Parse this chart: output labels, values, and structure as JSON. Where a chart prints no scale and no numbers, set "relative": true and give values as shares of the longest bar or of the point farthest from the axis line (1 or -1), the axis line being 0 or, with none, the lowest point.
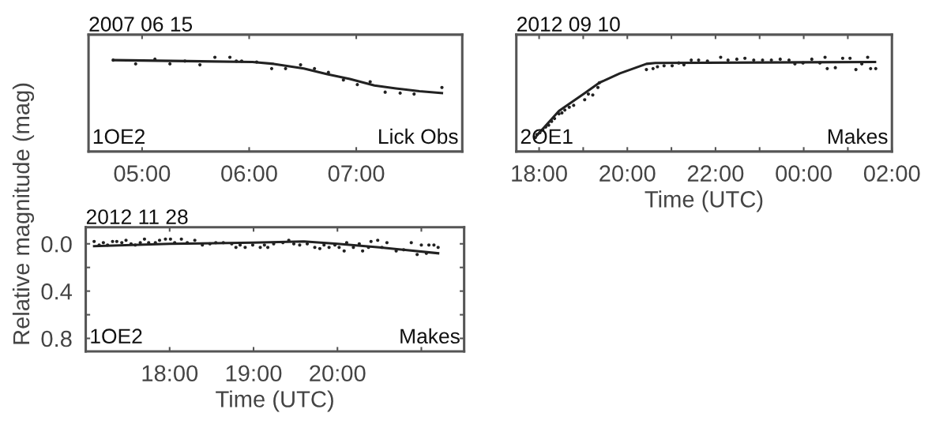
{
  "chart_data": [
    {
      "type": "scatter",
      "title": "2007 06 15",
      "relative": true,
      "tick_labels": "x",
      "xlim": [
        4.5,
        7.99
      ],
      "xticks": [
        {
          "value": 5,
          "label": "05:00"
        },
        {
          "value": 6,
          "label": "06:00"
        },
        {
          "value": 7,
          "label": "07:00"
        }
      ],
      "annotations": [
        "1OE2",
        "Lick Obs"
      ],
      "series": [
        {
          "marker": "circle",
          "color": "#222222",
          "x": [
            4.73,
            4.94,
            5.12,
            5.26,
            5.4,
            5.54,
            5.68,
            5.82,
            5.88,
            5.93,
            6.07,
            6.21,
            6.34,
            6.48,
            6.61,
            6.74,
            6.88,
            7.01,
            7.13,
            7.27,
            7.41,
            7.54,
            7.8
          ],
          "values": [
            0.97,
            0.93,
            0.98,
            0.93,
            0.96,
            0.92,
            1.0,
            1.0,
            0.96,
            0.96,
            0.95,
            0.88,
            0.88,
            0.92,
            0.88,
            0.84,
            0.76,
            0.71,
            0.74,
            0.63,
            0.62,
            0.61,
            0.68
          ]
        },
        {
          "type": "line",
          "marker": "none",
          "color": "#222222",
          "x": [
            4.73,
            6.03,
            6.23,
            6.51,
            6.73,
            6.94,
            7.17,
            7.37,
            7.59,
            7.8
          ],
          "values": [
            0.97,
            0.95,
            0.93,
            0.88,
            0.82,
            0.77,
            0.7,
            0.67,
            0.64,
            0.62
          ]
        }
      ]
    },
    {
      "type": "scatter",
      "title": "2012 09 10",
      "xlabel": "Time (UTC)",
      "relative": true,
      "tick_labels": "x",
      "xlim": [
        "2012-09-10T17:29",
        "2012-09-11T02:00"
      ],
      "xticks": [
        {
          "value": "2012-09-10T18:00",
          "label": "18:00"
        },
        {
          "value": "2012-09-10T19:00",
          "label": null
        },
        {
          "value": "2012-09-10T20:00",
          "label": "20:00"
        },
        {
          "value": "2012-09-10T21:00",
          "label": null
        },
        {
          "value": "2012-09-10T22:00",
          "label": "22:00"
        },
        {
          "value": "2012-09-10T23:00",
          "label": null
        },
        {
          "value": "2012-09-11T00:00",
          "label": "00:00"
        },
        {
          "value": "2012-09-11T01:00",
          "label": null
        },
        {
          "value": "2012-09-11T02:00",
          "label": "02:00"
        }
      ],
      "annotations": [
        "2OE1",
        "Makes"
      ],
      "series": [
        {
          "marker": "circle",
          "color": "#222222",
          "x": [
            "2012-09-10T17:55",
            "2012-09-10T17:57",
            "2012-09-10T18:01",
            "2012-09-10T18:05",
            "2012-09-10T18:09",
            "2012-09-10T18:13",
            "2012-09-10T18:17",
            "2012-09-10T18:21",
            "2012-09-10T18:27",
            "2012-09-10T18:31",
            "2012-09-10T18:35",
            "2012-09-10T18:41",
            "2012-09-10T18:47",
            "2012-09-10T19:02",
            "2012-09-10T19:07",
            "2012-09-10T19:13",
            "2012-09-10T19:20",
            "2012-09-10T19:22",
            "2012-09-10T20:26",
            "2012-09-10T20:35",
            "2012-09-10T20:41",
            "2012-09-10T20:50",
            "2012-09-10T21:01",
            "2012-09-10T21:10",
            "2012-09-10T21:17",
            "2012-09-10T21:27",
            "2012-09-10T21:37",
            "2012-09-10T21:49",
            "2012-09-10T22:07",
            "2012-09-10T22:17",
            "2012-09-10T22:29",
            "2012-09-10T22:40",
            "2012-09-10T22:52",
            "2012-09-10T23:04",
            "2012-09-10T23:16",
            "2012-09-10T23:28",
            "2012-09-10T23:40",
            "2012-09-10T23:48",
            "2012-09-10T23:59",
            "2012-09-11T00:11",
            "2012-09-11T00:22",
            "2012-09-11T00:29",
            "2012-09-11T00:32",
            "2012-09-11T00:43",
            "2012-09-11T00:53",
            "2012-09-11T01:03",
            "2012-09-11T01:11",
            "2012-09-11T01:19",
            "2012-09-11T01:27",
            "2012-09-11T01:31",
            "2012-09-11T01:38"
          ],
          "values": [
            0.15,
            0.18,
            0.2,
            0.23,
            0.26,
            0.28,
            0.32,
            0.35,
            0.4,
            0.41,
            0.44,
            0.47,
            0.49,
            0.55,
            0.61,
            0.6,
            0.68,
            0.73,
            0.87,
            0.88,
            0.9,
            0.91,
            0.91,
            0.94,
            0.92,
            0.97,
            0.97,
            0.96,
            1.0,
            0.97,
            0.98,
            0.99,
            0.97,
            0.97,
            0.97,
            0.98,
            0.97,
            0.93,
            0.94,
            0.98,
            0.94,
            1.0,
            0.88,
            0.89,
            0.99,
            0.99,
            0.87,
            0.93,
            1.0,
            0.88,
            0.88
          ]
        },
        {
          "type": "line",
          "marker": "none",
          "color": "#222222",
          "x": [
            "2012-09-10T17:57",
            "2012-09-10T18:27",
            "2012-09-10T19:02",
            "2012-09-10T19:22",
            "2012-09-10T19:50",
            "2012-09-10T20:26",
            "2012-09-10T20:38",
            "2012-09-11T01:37"
          ],
          "values": [
            0.17,
            0.43,
            0.62,
            0.73,
            0.83,
            0.93,
            0.94,
            0.95
          ]
        }
      ]
    },
    {
      "type": "scatter",
      "title": "2012 11 28",
      "xlabel": "Time (UTC)",
      "ylabel": "Relative magnitude (mag)",
      "xlim": [
        17.0,
        21.51
      ],
      "ylim": [
        0.91,
        -0.14
      ],
      "xticks": [
        {
          "value": 18,
          "label": "18:00"
        },
        {
          "value": 19,
          "label": "19:00"
        },
        {
          "value": 20,
          "label": "20:00"
        },
        {
          "value": 21,
          "label": null
        }
      ],
      "yticks": [
        {
          "value": 0,
          "label": "0.0"
        },
        {
          "value": 0.2,
          "label": null
        },
        {
          "value": 0.4,
          "label": "0.4"
        },
        {
          "value": 0.6,
          "label": null
        },
        {
          "value": 0.8,
          "label": "0.8"
        }
      ],
      "annotations": [
        "1OE2",
        "Makes"
      ],
      "series": [
        {
          "marker": "circle",
          "color": "#222222",
          "x": [
            17.1,
            17.16,
            17.21,
            17.26,
            17.32,
            17.37,
            17.43,
            17.48,
            17.54,
            17.59,
            17.65,
            17.7,
            17.75,
            17.83,
            17.88,
            17.95,
            18.01,
            18.06,
            18.14,
            18.21,
            18.3,
            18.39,
            18.48,
            18.55,
            18.64,
            18.74,
            18.79,
            18.84,
            18.9,
            18.99,
            19.08,
            19.13,
            19.17,
            19.24,
            19.35,
            19.42,
            19.48,
            19.55,
            19.64,
            19.73,
            19.79,
            19.84,
            19.9,
            19.97,
            20.02,
            20.08,
            20.11,
            20.19,
            20.26,
            20.3,
            20.37,
            20.4,
            20.48,
            20.53,
            20.59,
            20.7,
            20.79,
            20.88,
            20.95,
            21.0,
            21.06,
            21.09,
            21.15,
            21.2
          ],
          "values": [
            -0.02,
            0.01,
            -0.01,
            0.01,
            -0.02,
            -0.02,
            -0.01,
            -0.03,
            0.0,
            0.01,
            -0.01,
            -0.04,
            -0.01,
            -0.01,
            -0.03,
            -0.04,
            -0.04,
            -0.01,
            -0.04,
            -0.01,
            -0.03,
            0.01,
            0.0,
            -0.01,
            -0.01,
            0.0,
            0.03,
            0.01,
            0.03,
            0.01,
            0.03,
            0.01,
            0.03,
            0.0,
            -0.01,
            -0.03,
            0.0,
            0.01,
            0.0,
            0.03,
            0.04,
            0.01,
            0.03,
            0.01,
            0.03,
            0.06,
            -0.01,
            0.03,
            0.0,
            0.06,
            0.03,
            -0.02,
            -0.03,
            0.03,
            -0.01,
            0.06,
            0.05,
            -0.01,
            0.09,
            0.01,
            0.08,
            0.01,
            0.01,
            0.03
          ]
        },
        {
          "type": "line",
          "marker": "none",
          "color": "#222222",
          "x": [
            17.1,
            18.0,
            19.0,
            19.6,
            20.0,
            20.5,
            21.2
          ],
          "values": [
            0.02,
            0.0,
            -0.01,
            -0.02,
            0.0,
            0.03,
            0.08
          ]
        }
      ]
    }
  ]
}
